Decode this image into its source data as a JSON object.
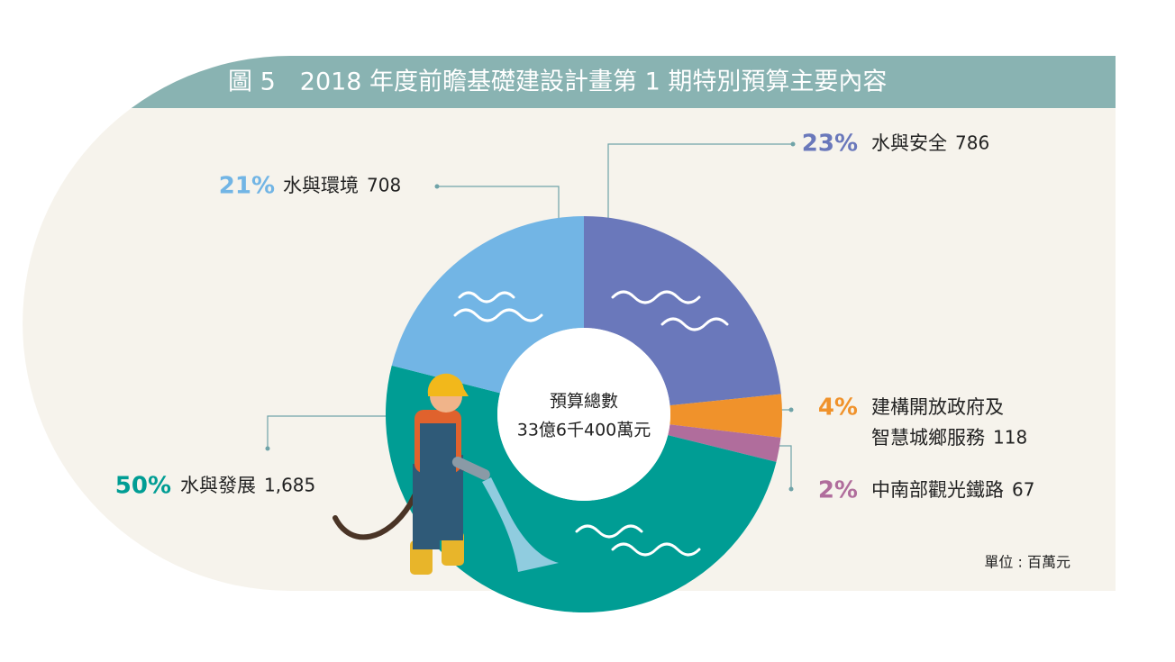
{
  "chart_data": {
    "type": "donut",
    "title": "圖 5　2018 年度前瞻基礎建設計畫第 1 期特別預算主要內容",
    "center_text": [
      "預算總數",
      "33億6千400萬元"
    ],
    "unit_note": "單位 : 百萬元",
    "categories": [
      [
        "水與安全"
      ],
      [
        "建構開放政府及",
        "智慧城鄉服務"
      ],
      [
        "中南部觀光鐵路"
      ],
      [
        "水與發展"
      ],
      [
        "水與環境"
      ]
    ],
    "values": [
      786,
      118,
      67,
      1685,
      708
    ],
    "value_labels": [
      "786",
      "118",
      "67",
      "1,685",
      "708"
    ],
    "percent_labels": [
      "23%",
      "4%",
      "2%",
      "50%",
      "21%"
    ],
    "colors": [
      "#6a78bb",
      "#f0922b",
      "#b06d9c",
      "#009d94",
      "#72b5e5"
    ]
  }
}
